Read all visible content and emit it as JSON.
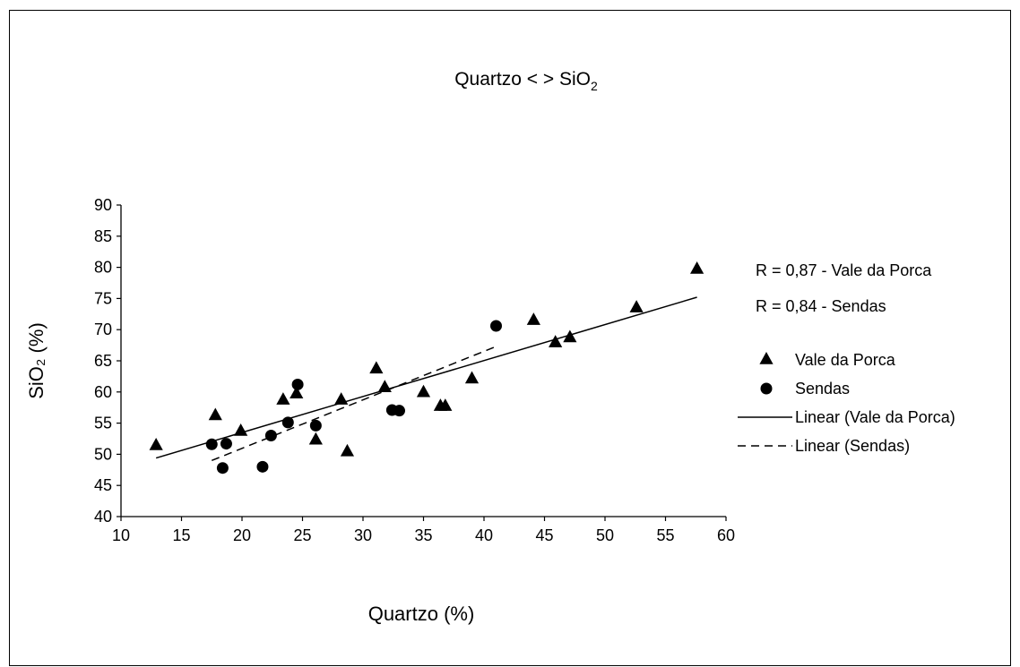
{
  "chart_data": {
    "type": "scatter",
    "title": "Quartzo < > SiO",
    "title_subscript": "2",
    "xlabel": "Quartzo (%)",
    "ylabel": "SiO₂ (%)",
    "xlim": [
      10,
      60
    ],
    "ylim": [
      40,
      90
    ],
    "x_ticks": [
      "10",
      "15",
      "20",
      "25",
      "30",
      "35",
      "40",
      "45",
      "50",
      "55",
      "60"
    ],
    "y_ticks": [
      "40",
      "45",
      "50",
      "55",
      "60",
      "65",
      "70",
      "75",
      "80",
      "85",
      "90"
    ],
    "grid": false,
    "legend_position": "right",
    "annotations": [
      "R = 0,87 - Vale da Porca",
      "R = 0,84 - Sendas"
    ],
    "series": [
      {
        "name": "Vale da Porca",
        "marker": "triangle",
        "color": "#000000",
        "points": [
          [
            12.9,
            51.5
          ],
          [
            17.8,
            56.3
          ],
          [
            19.9,
            53.8
          ],
          [
            23.4,
            58.8
          ],
          [
            24.5,
            59.8
          ],
          [
            26.1,
            52.4
          ],
          [
            28.2,
            58.8
          ],
          [
            28.7,
            50.5
          ],
          [
            31.1,
            63.8
          ],
          [
            31.8,
            60.8
          ],
          [
            35.0,
            60.0
          ],
          [
            36.4,
            57.8
          ],
          [
            36.8,
            57.8
          ],
          [
            39.0,
            62.2
          ],
          [
            44.1,
            71.6
          ],
          [
            45.9,
            68.0
          ],
          [
            47.1,
            68.8
          ],
          [
            52.6,
            73.6
          ],
          [
            57.6,
            79.8
          ]
        ]
      },
      {
        "name": "Sendas",
        "marker": "circle",
        "color": "#000000",
        "points": [
          [
            17.5,
            51.6
          ],
          [
            18.4,
            47.8
          ],
          [
            18.7,
            51.7
          ],
          [
            21.7,
            48.0
          ],
          [
            22.4,
            53.0
          ],
          [
            23.8,
            55.1
          ],
          [
            24.6,
            61.2
          ],
          [
            26.1,
            54.6
          ],
          [
            32.4,
            57.1
          ],
          [
            33.0,
            57.0
          ],
          [
            41.0,
            70.6
          ]
        ]
      },
      {
        "name": "Linear (Vale da Porca)",
        "type": "line",
        "style": "solid",
        "points": [
          [
            12.9,
            49.4
          ],
          [
            57.6,
            75.2
          ]
        ]
      },
      {
        "name": "Linear (Sendas)",
        "type": "line",
        "style": "dashed",
        "points": [
          [
            17.5,
            49.0
          ],
          [
            41.0,
            67.3
          ]
        ]
      }
    ]
  }
}
